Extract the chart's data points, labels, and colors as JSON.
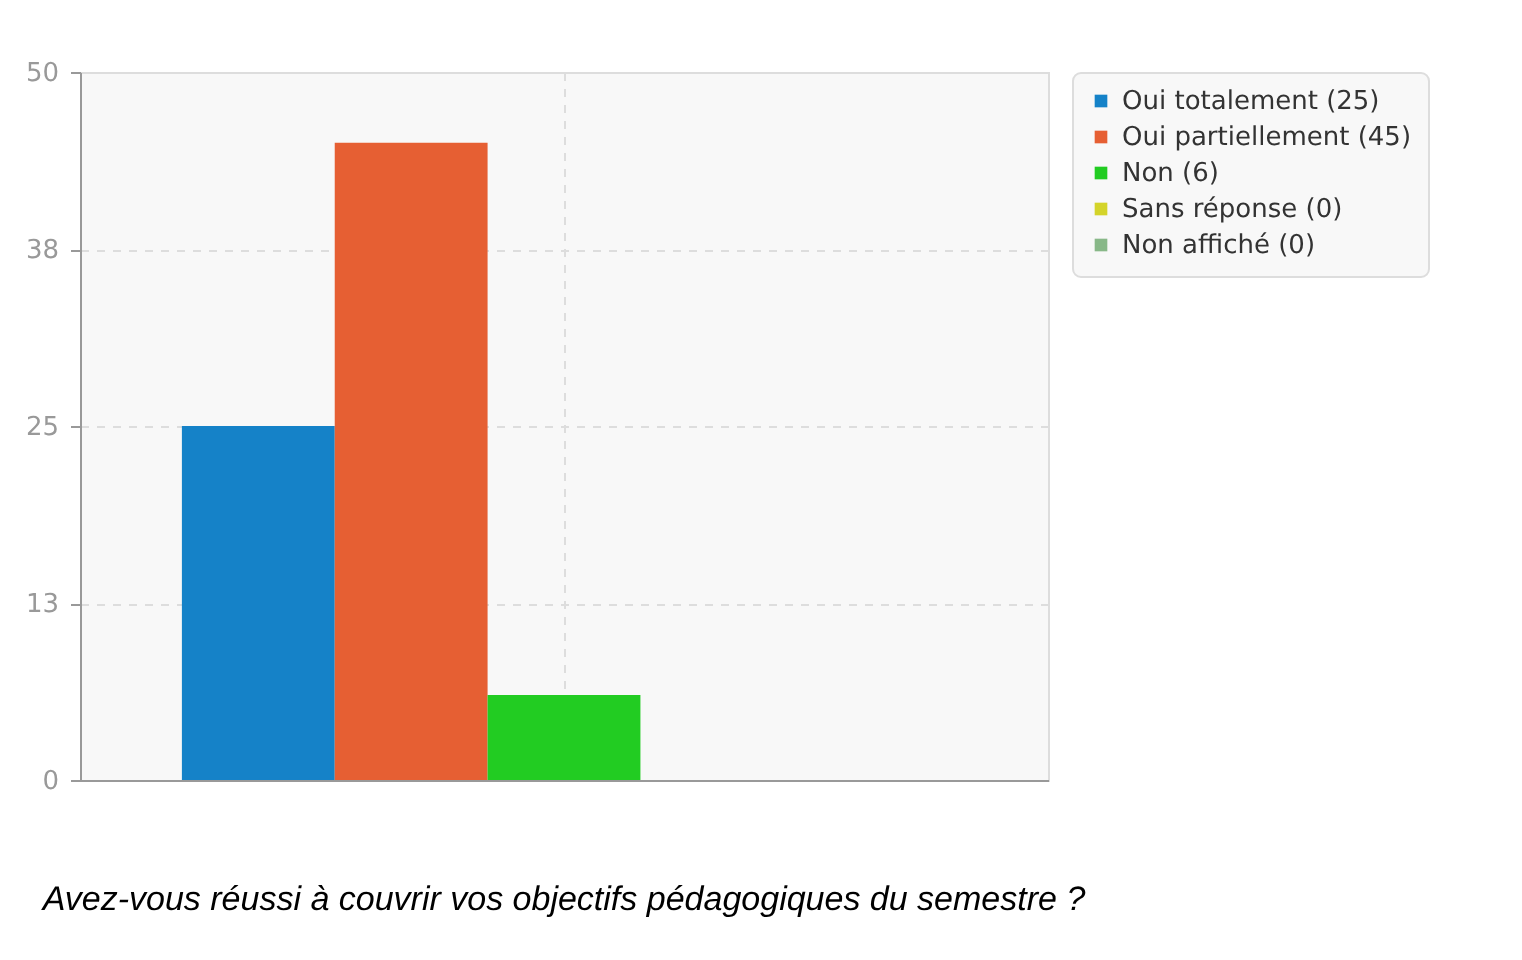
{
  "chart_data": {
    "type": "bar",
    "title": "Avez-vous réussi à couvrir vos objectifs pédagogiques du semestre ?",
    "categories": [
      null
    ],
    "series": [
      {
        "name": "Oui totalement (25)",
        "color": "#1582c8",
        "values": [
          25
        ]
      },
      {
        "name": "Oui partiellement (45)",
        "color": "#e65f33",
        "values": [
          45
        ]
      },
      {
        "name": "Non (6)",
        "color": "#22cc22",
        "values": [
          6
        ]
      },
      {
        "name": "Sans réponse (0)",
        "color": "#d4d42a",
        "values": [
          0
        ]
      },
      {
        "name": "Non affiché (0)",
        "color": "#88b888",
        "values": [
          0
        ]
      }
    ],
    "ylim": [
      0,
      50
    ],
    "yticks": [
      0,
      {
        "value": 12.5,
        "label": "13"
      },
      25,
      {
        "value": 37.5,
        "label": "38"
      },
      50
    ],
    "grid": true,
    "legend": "top right",
    "tick_labels": "y"
  }
}
